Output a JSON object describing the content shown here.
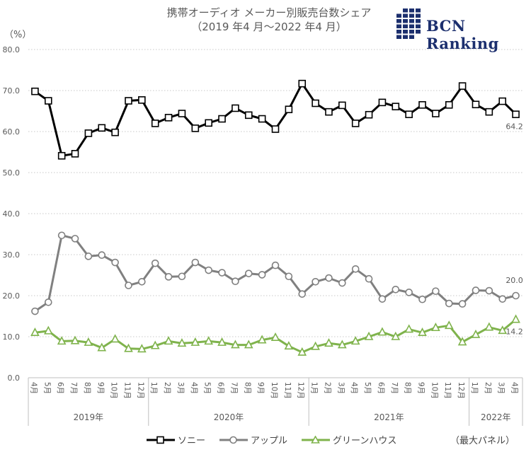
{
  "title_line1": "携帯オーディオ メーカー別販売台数シェア",
  "title_line2": "（2019 年4 月〜2022 年4 月）",
  "unit_label": "（%）",
  "logo": {
    "text": "BCN Ranking",
    "color": "#1c2f6e"
  },
  "note": "（最大パネル）",
  "chart_data": {
    "type": "line",
    "ylabel": "（%）",
    "ylim": [
      0,
      80
    ],
    "yticks": [
      "0.0",
      "10.0",
      "20.0",
      "30.0",
      "40.0",
      "50.0",
      "60.0",
      "70.0",
      "80.0"
    ],
    "grid": true,
    "legend_position": "bottom",
    "categories": [
      "4月",
      "5月",
      "6月",
      "7月",
      "8月",
      "9月",
      "10月",
      "11月",
      "12月",
      "1月",
      "2月",
      "3月",
      "4月",
      "5月",
      "6月",
      "7月",
      "8月",
      "9月",
      "10月",
      "11月",
      "12月",
      "1月",
      "2月",
      "3月",
      "4月",
      "5月",
      "6月",
      "7月",
      "8月",
      "9月",
      "10月",
      "11月",
      "12月",
      "1月",
      "2月",
      "3月",
      "4月"
    ],
    "year_groups": [
      {
        "label": "2019年",
        "start": 0,
        "end": 8
      },
      {
        "label": "2020年",
        "start": 9,
        "end": 20
      },
      {
        "label": "2021年",
        "start": 21,
        "end": 32
      },
      {
        "label": "2022年",
        "start": 33,
        "end": 36
      }
    ],
    "series": [
      {
        "name": "ソニー",
        "color": "#000000",
        "marker": "square",
        "end_label": "64.2",
        "values": [
          69.8,
          67.5,
          54.1,
          54.6,
          59.6,
          60.9,
          59.8,
          67.5,
          67.7,
          62.0,
          63.4,
          64.4,
          60.8,
          62.1,
          63.1,
          65.7,
          64.0,
          63.1,
          60.6,
          65.4,
          71.7,
          66.9,
          64.8,
          66.4,
          62.0,
          64.1,
          67.1,
          66.1,
          64.2,
          66.5,
          64.4,
          66.5,
          71.1,
          66.6,
          64.8,
          67.4,
          64.2
        ]
      },
      {
        "name": "アップル",
        "color": "#808080",
        "marker": "circle",
        "end_label": "20.0",
        "values": [
          16.2,
          18.4,
          34.7,
          33.9,
          29.6,
          29.9,
          28.1,
          22.5,
          23.4,
          27.9,
          24.6,
          24.7,
          28.1,
          26.2,
          25.6,
          23.5,
          25.4,
          25.1,
          27.4,
          24.7,
          20.4,
          23.4,
          24.3,
          23.1,
          26.5,
          24.1,
          19.2,
          21.5,
          20.8,
          19.1,
          21.1,
          18.1,
          18.0,
          21.3,
          21.2,
          19.2,
          20.0
        ]
      },
      {
        "name": "グリーンハウス",
        "color": "#7fb34c",
        "marker": "triangle",
        "end_label": "14.2",
        "values": [
          11.0,
          11.4,
          8.9,
          9.0,
          8.6,
          7.3,
          9.4,
          7.1,
          7.0,
          7.8,
          8.9,
          8.4,
          8.6,
          8.9,
          8.6,
          8.0,
          8.0,
          9.2,
          9.8,
          7.7,
          6.2,
          7.6,
          8.4,
          8.0,
          8.9,
          10.0,
          11.1,
          10.0,
          11.8,
          11.0,
          12.2,
          12.7,
          8.7,
          10.5,
          12.3,
          11.5,
          14.2
        ]
      }
    ]
  }
}
